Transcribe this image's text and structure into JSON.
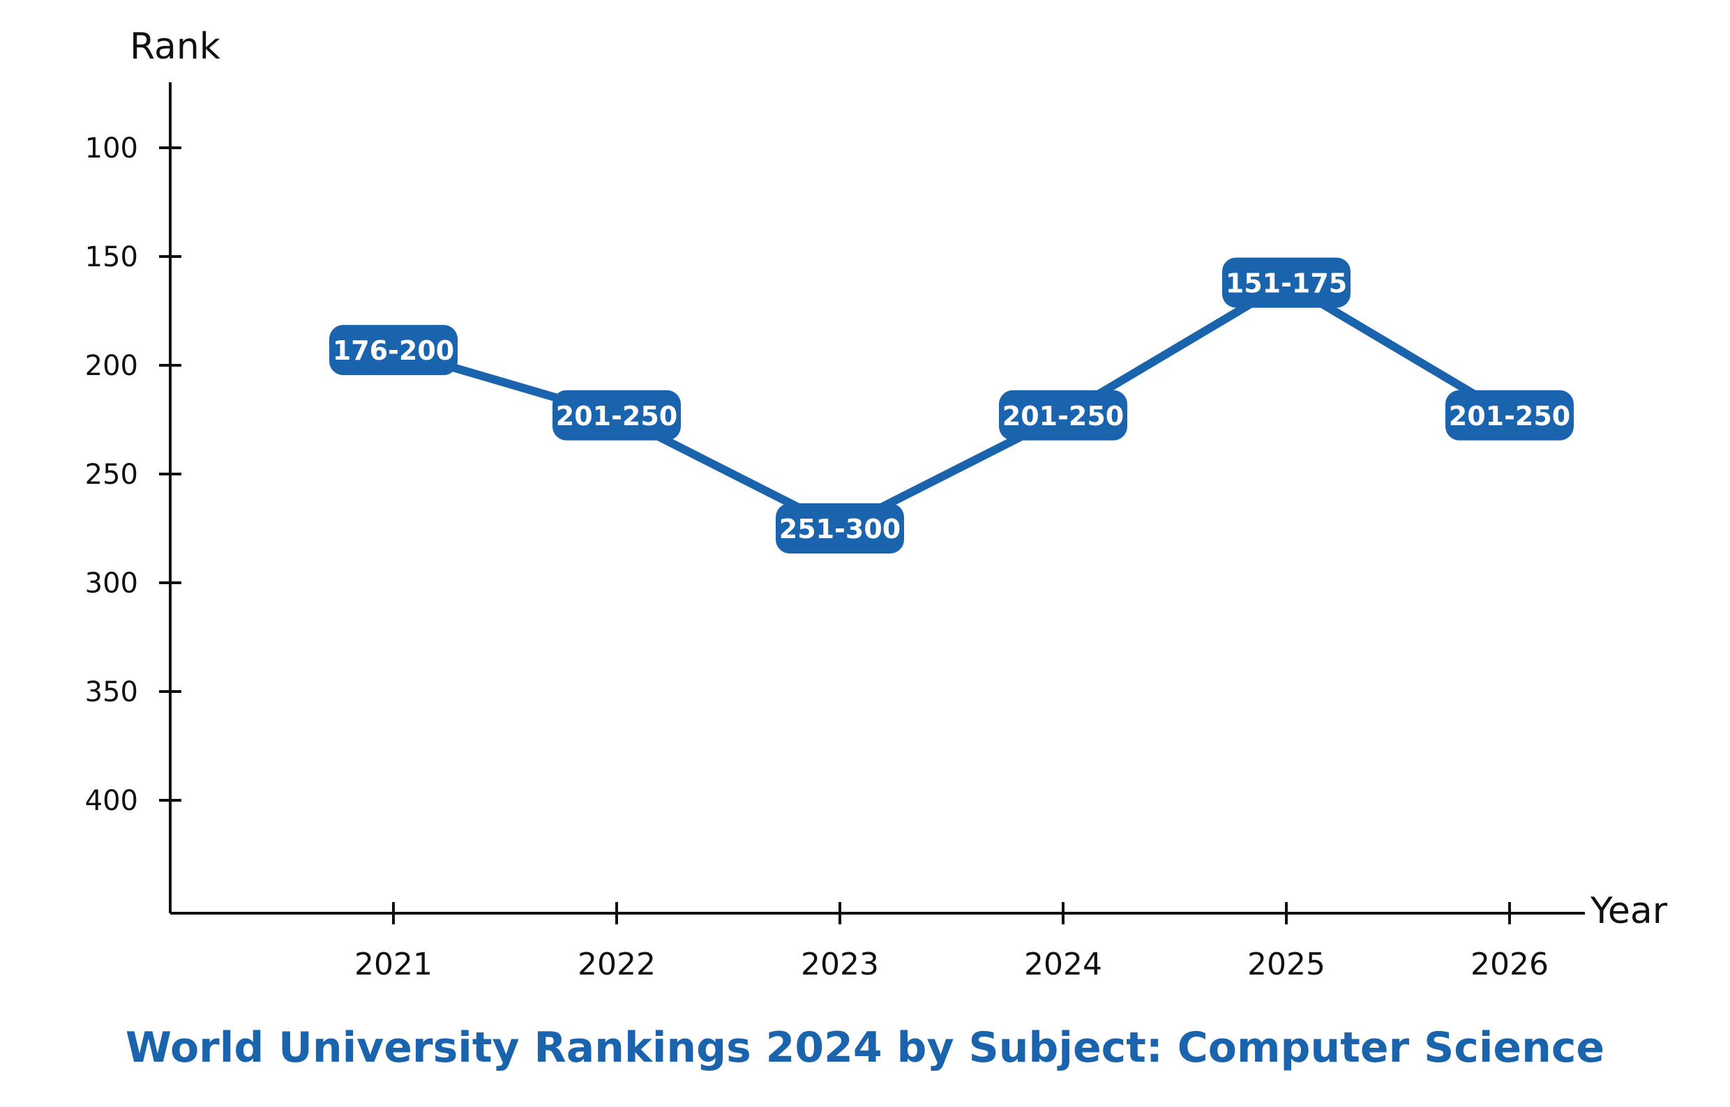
{
  "chart_data": {
    "type": "line",
    "title": "World University Rankings 2024 by Subject: Computer Science",
    "xlabel": "Year",
    "ylabel": "Rank",
    "categories": [
      "2021",
      "2022",
      "2023",
      "2024",
      "2025",
      "2026"
    ],
    "series": [
      {
        "values": [
          193,
          223,
          275,
          223,
          162,
          223
        ],
        "labels": [
          "176-200",
          "201-250",
          "251-300",
          "201-250",
          "151-175",
          "201-250"
        ]
      }
    ],
    "y_ticks": [
      100,
      150,
      200,
      250,
      300,
      350,
      400
    ],
    "ylim": [
      70,
      450
    ],
    "y_inverted": true,
    "grid": false,
    "colors": {
      "line": "#1a63ad",
      "label_bg": "#1a63ad",
      "label_text": "#ffffff",
      "axis": "#111111",
      "title": "#1a63ad"
    }
  }
}
